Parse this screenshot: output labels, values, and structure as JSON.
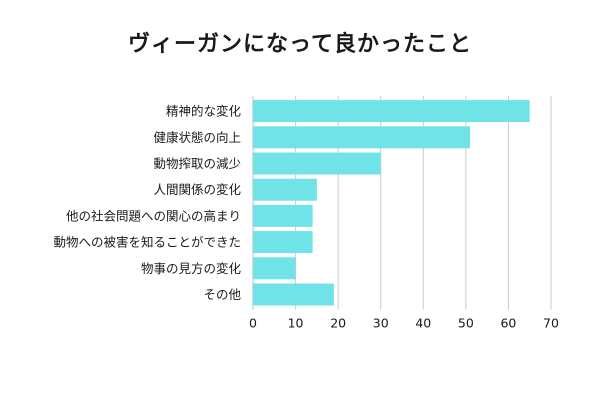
{
  "chart_data": {
    "type": "bar",
    "orientation": "horizontal",
    "title": "ヴィーガンになって良かったこと",
    "categories": [
      "精神的な変化",
      "健康状態の向上",
      "動物搾取の減少",
      "人間関係の変化",
      "他の社会問題への関心の高まり",
      "動物への被害を知ることができた",
      "物事の見方の変化",
      "その他"
    ],
    "values": [
      65,
      51,
      30,
      15,
      14,
      14,
      10,
      19
    ],
    "xlim": [
      0,
      70
    ],
    "xticks": [
      0,
      10,
      20,
      30,
      40,
      50,
      60,
      70
    ],
    "grid": true,
    "bar_color": "#6fe3e7",
    "grid_color": "#cccccc"
  }
}
